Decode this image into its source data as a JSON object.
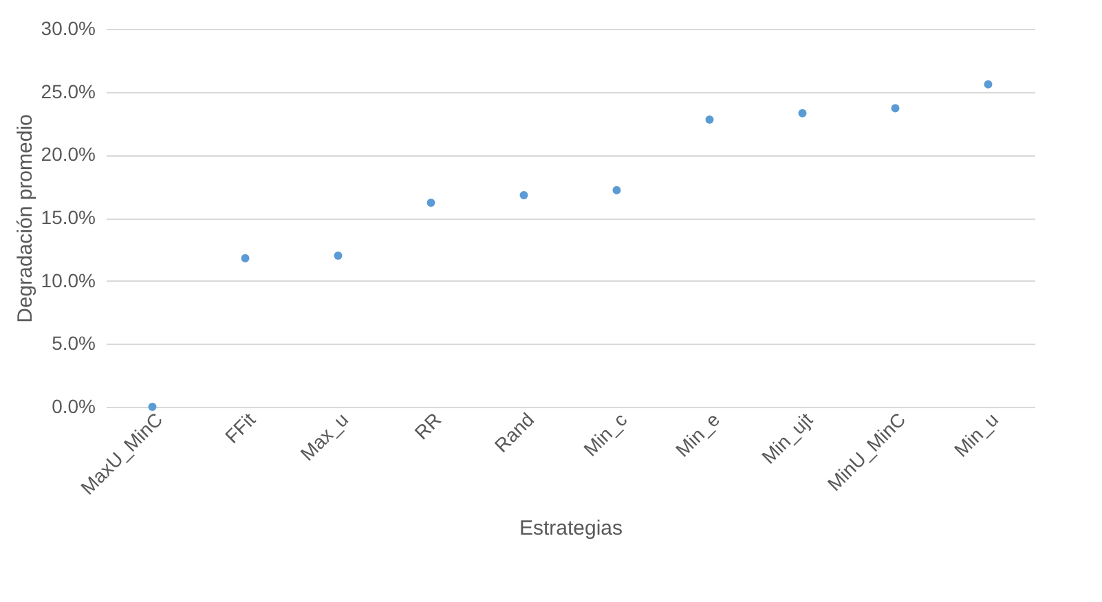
{
  "chart_data": {
    "type": "scatter",
    "xlabel": "Estrategias",
    "ylabel": "Degradación promedio",
    "categories": [
      "MaxU_MinC",
      "FFit",
      "Max_u",
      "RR",
      "Rand",
      "Min_c",
      "Min_e",
      "Min_ujt",
      "MinU_MinC",
      "Min_u"
    ],
    "series": [
      {
        "color": "#5b9bd5",
        "values": [
          0,
          11.8,
          12.0,
          16.2,
          16.8,
          17.2,
          22.8,
          23.3,
          23.7,
          25.6
        ]
      }
    ],
    "ylim": [
      0,
      30
    ],
    "yticks": [
      {
        "value": 0,
        "label": "0.0%"
      },
      {
        "value": 5,
        "label": "5.0%"
      },
      {
        "value": 10,
        "label": "10.0%"
      },
      {
        "value": 15,
        "label": "15.0%"
      },
      {
        "value": 20,
        "label": "20.0%"
      },
      {
        "value": 25,
        "label": "25.0%"
      },
      {
        "value": 30,
        "label": "30.0%"
      }
    ],
    "grid": "y",
    "marker": "circle",
    "legend": false
  }
}
